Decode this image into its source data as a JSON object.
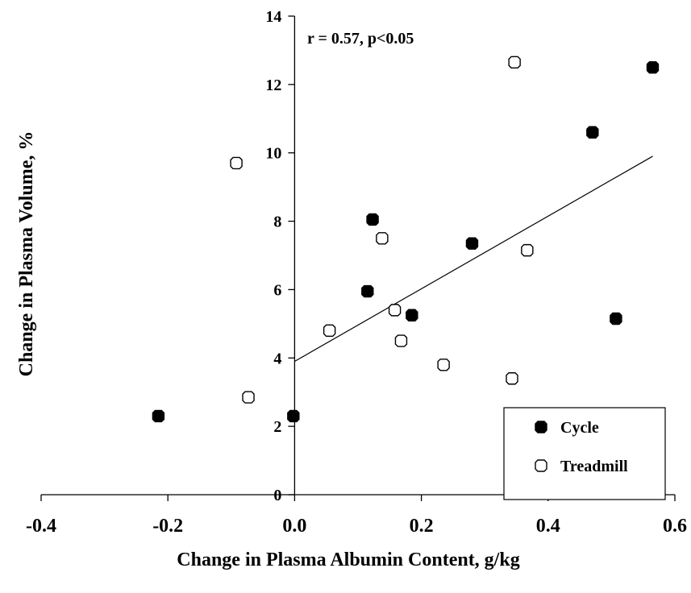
{
  "chart_data": {
    "type": "scatter",
    "title": "",
    "xlabel": "Change in Plasma Albumin Content, g/kg",
    "ylabel": "Change in Plasma Volume, %",
    "xlim": [
      -0.4,
      0.6
    ],
    "ylim": [
      0,
      14
    ],
    "x_ticks": [
      "-0.4",
      "-0.2",
      "0.0",
      "0.2",
      "0.4",
      "0.6"
    ],
    "y_ticks": [
      "0",
      "2",
      "4",
      "6",
      "8",
      "10",
      "12",
      "14"
    ],
    "annotation": "r = 0.57, p<0.05",
    "grid": false,
    "legend_position": "bottom-right",
    "series": [
      {
        "name": "Cycle",
        "marker": "filled",
        "color": "#000000",
        "points": [
          {
            "x": -0.215,
            "y": 2.3
          },
          {
            "x": -0.002,
            "y": 2.3
          },
          {
            "x": 0.115,
            "y": 5.95
          },
          {
            "x": 0.123,
            "y": 8.05
          },
          {
            "x": 0.185,
            "y": 5.25
          },
          {
            "x": 0.28,
            "y": 7.35
          },
          {
            "x": 0.47,
            "y": 10.6
          },
          {
            "x": 0.507,
            "y": 5.15
          },
          {
            "x": 0.565,
            "y": 12.5
          }
        ]
      },
      {
        "name": "Treadmill",
        "marker": "open",
        "color": "#000000",
        "points": [
          {
            "x": -0.092,
            "y": 9.7
          },
          {
            "x": -0.073,
            "y": 2.85
          },
          {
            "x": 0.055,
            "y": 4.8
          },
          {
            "x": 0.138,
            "y": 7.5
          },
          {
            "x": 0.158,
            "y": 5.4
          },
          {
            "x": 0.168,
            "y": 4.5
          },
          {
            "x": 0.235,
            "y": 3.8
          },
          {
            "x": 0.343,
            "y": 3.4
          },
          {
            "x": 0.347,
            "y": 12.65
          },
          {
            "x": 0.367,
            "y": 7.15
          }
        ]
      }
    ],
    "trendline": {
      "x": [
        0.0,
        0.565
      ],
      "y": [
        3.9,
        9.9
      ]
    }
  }
}
